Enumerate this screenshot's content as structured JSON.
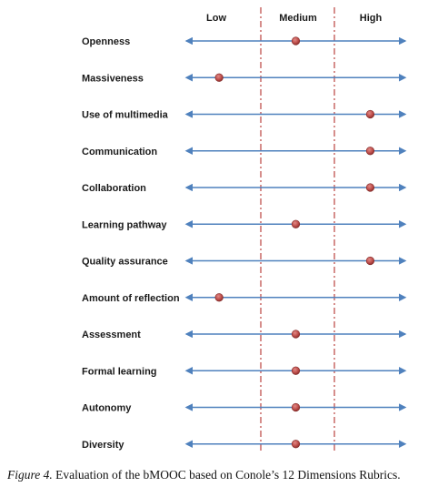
{
  "chart_data": {
    "type": "scatter",
    "scale_labels": [
      "Low",
      "Medium",
      "High"
    ],
    "dimensions": [
      {
        "name": "Openness",
        "value": 0.5
      },
      {
        "name": "Massiveness",
        "value": 0.15
      },
      {
        "name": "Use of multimedia",
        "value": 0.84
      },
      {
        "name": "Communication",
        "value": 0.84
      },
      {
        "name": "Collaboration",
        "value": 0.84
      },
      {
        "name": "Learning pathway",
        "value": 0.5
      },
      {
        "name": "Quality assurance",
        "value": 0.84
      },
      {
        "name": "Amount of reflection",
        "value": 0.15
      },
      {
        "name": "Assessment",
        "value": 0.5
      },
      {
        "name": "Formal learning",
        "value": 0.5
      },
      {
        "name": "Autonomy",
        "value": 0.5
      },
      {
        "name": "Diversity",
        "value": 0.5
      }
    ],
    "colors": {
      "axis": "#4f81bd",
      "marker": "#c0504d",
      "divider": "#c0504d"
    }
  },
  "caption": {
    "figure_label": "Figure 4.",
    "text": " Evaluation of the bMOOC based on Conole’s 12 Dimensions Rubrics."
  }
}
